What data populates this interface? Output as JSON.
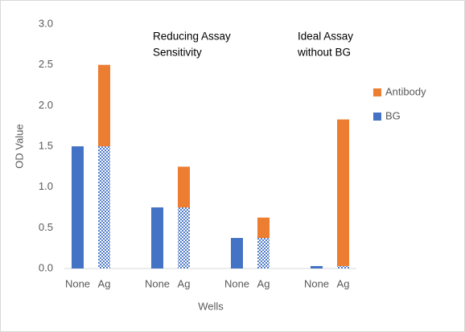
{
  "chart_data": {
    "type": "stacked_bar",
    "categories": [
      "None",
      "Ag",
      null,
      "None",
      "Ag",
      null,
      "None",
      "Ag",
      null,
      "None",
      "Ag"
    ],
    "series": [
      {
        "name": "BG",
        "color": "#4472c4",
        "values": [
          1.5,
          1.5,
          null,
          0.75,
          0.75,
          null,
          0.375,
          0.375,
          null,
          0.03,
          0.03
        ]
      },
      {
        "name": "Antibody",
        "color": "#ed7d31",
        "values": [
          0,
          1.0,
          null,
          0,
          0.5,
          null,
          0,
          0.25,
          null,
          0,
          1.8
        ]
      }
    ],
    "ylim": [
      0,
      3
    ],
    "yticks": [
      {
        "value": 0,
        "label": "0.0"
      },
      0.5,
      {
        "value": 1,
        "label": "1.0"
      },
      1.5,
      {
        "value": 2,
        "label": "2.0"
      },
      2.5,
      {
        "value": 3,
        "label": "3.0"
      }
    ],
    "y_label": "OD Value",
    "x_label": "Wells",
    "annotations": [
      [
        "Reducing Assay",
        "Sensitivity"
      ],
      [
        "Ideal Assay",
        "without BG"
      ]
    ],
    "legend": "right",
    "grid": false
  }
}
